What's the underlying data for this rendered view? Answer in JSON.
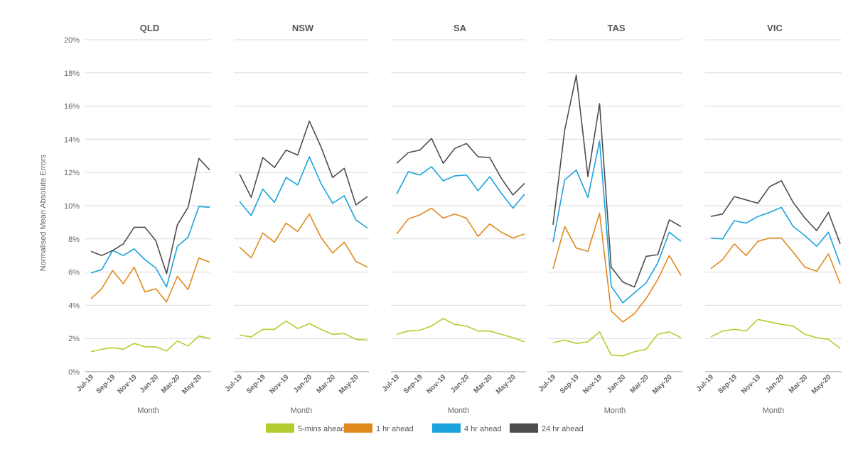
{
  "y_axis_label": "Normalised Mean Absolute Errors",
  "x_axis_label": "Month",
  "y_ticks": [
    "0%",
    "2%",
    "4%",
    "6%",
    "8%",
    "10%",
    "12%",
    "14%",
    "16%",
    "18%",
    "20%"
  ],
  "x_ticks": [
    "Jul-19",
    "Sep-19",
    "Nov-19",
    "Jan-20",
    "Mar-20",
    "May-20"
  ],
  "legend": [
    {
      "label": "5-mins ahead",
      "color": "#b5cc2e"
    },
    {
      "label": "1 hr ahead",
      "color": "#e08a1e"
    },
    {
      "label": "4 hr ahead",
      "color": "#1aa3dc"
    },
    {
      "label": "24 hr ahead",
      "color": "#4d4d4f"
    }
  ],
  "chart_data": [
    {
      "type": "line",
      "title": "QLD",
      "xlabel": "Month",
      "ylabel": "Normalised Mean Absolute Errors",
      "ylim": [
        0,
        20
      ],
      "series": [
        {
          "name": "5-mins ahead",
          "values": [
            1.2,
            1.35,
            1.45,
            1.35,
            1.7,
            1.5,
            1.5,
            1.25,
            1.85,
            1.55,
            2.15,
            2.0
          ]
        },
        {
          "name": "1 hr ahead",
          "values": [
            4.4,
            5.0,
            6.1,
            5.3,
            6.3,
            4.8,
            5.0,
            4.2,
            5.75,
            4.95,
            6.85,
            6.6
          ]
        },
        {
          "name": "4 hr ahead",
          "values": [
            5.95,
            6.15,
            7.3,
            7.0,
            7.4,
            6.75,
            6.25,
            5.1,
            7.55,
            8.1,
            9.95,
            9.9
          ]
        },
        {
          "name": "24 hr ahead",
          "values": [
            7.25,
            7.0,
            7.3,
            7.7,
            8.7,
            8.7,
            7.9,
            5.9,
            8.85,
            9.9,
            12.85,
            12.15
          ]
        }
      ]
    },
    {
      "type": "line",
      "title": "NSW",
      "xlabel": "Month",
      "ylabel": "Normalised Mean Absolute Errors",
      "ylim": [
        0,
        20
      ],
      "series": [
        {
          "name": "5-mins ahead",
          "values": [
            2.2,
            2.1,
            2.55,
            2.55,
            3.05,
            2.6,
            2.9,
            2.55,
            2.25,
            2.3,
            1.95,
            1.9
          ]
        },
        {
          "name": "1 hr ahead",
          "values": [
            7.5,
            6.85,
            8.35,
            7.8,
            8.95,
            8.45,
            9.5,
            8.1,
            7.15,
            7.8,
            6.65,
            6.3
          ]
        },
        {
          "name": "4 hr ahead",
          "values": [
            10.25,
            9.4,
            11.0,
            10.2,
            11.7,
            11.25,
            12.95,
            11.35,
            10.15,
            10.6,
            9.15,
            8.65
          ]
        },
        {
          "name": "24 hr ahead",
          "values": [
            11.9,
            10.5,
            12.9,
            12.3,
            13.35,
            13.05,
            15.1,
            13.55,
            11.7,
            12.25,
            10.05,
            10.55
          ]
        }
      ]
    },
    {
      "type": "line",
      "title": "SA",
      "xlabel": "Month",
      "ylabel": "Normalised Mean Absolute Errors",
      "ylim": [
        0,
        20
      ],
      "series": [
        {
          "name": "5-mins ahead",
          "values": [
            2.25,
            2.45,
            2.5,
            2.75,
            3.2,
            2.85,
            2.75,
            2.45,
            2.45,
            2.25,
            2.05,
            1.8
          ]
        },
        {
          "name": "1 hr ahead",
          "values": [
            8.3,
            9.2,
            9.45,
            9.85,
            9.25,
            9.5,
            9.25,
            8.15,
            8.9,
            8.4,
            8.05,
            8.3
          ]
        },
        {
          "name": "4 hr ahead",
          "values": [
            10.7,
            12.05,
            11.85,
            12.35,
            11.5,
            11.8,
            11.85,
            10.9,
            11.75,
            10.75,
            9.85,
            10.7
          ]
        },
        {
          "name": "24 hr ahead",
          "values": [
            12.55,
            13.2,
            13.35,
            14.05,
            12.55,
            13.45,
            13.75,
            12.95,
            12.9,
            11.65,
            10.65,
            11.35
          ]
        }
      ]
    },
    {
      "type": "line",
      "title": "TAS",
      "xlabel": "Month",
      "ylabel": "Normalised Mean Absolute Errors",
      "ylim": [
        0,
        20
      ],
      "series": [
        {
          "name": "5-mins ahead",
          "values": [
            1.75,
            1.9,
            1.7,
            1.8,
            2.4,
            1.0,
            0.95,
            1.2,
            1.35,
            2.25,
            2.4,
            2.05
          ]
        },
        {
          "name": "1 hr ahead",
          "values": [
            6.2,
            8.75,
            7.45,
            7.25,
            9.55,
            3.65,
            3.0,
            3.5,
            4.4,
            5.55,
            7.0,
            5.8
          ]
        },
        {
          "name": "4 hr ahead",
          "values": [
            7.8,
            11.55,
            12.15,
            10.5,
            13.9,
            5.15,
            4.15,
            4.75,
            5.35,
            6.55,
            8.4,
            7.85
          ]
        },
        {
          "name": "24 hr ahead",
          "values": [
            8.85,
            14.55,
            17.85,
            11.75,
            16.15,
            6.3,
            5.4,
            5.1,
            6.95,
            7.05,
            9.15,
            8.75
          ]
        }
      ]
    },
    {
      "type": "line",
      "title": "VIC",
      "xlabel": "Month",
      "ylabel": "Normalised Mean Absolute Errors",
      "ylim": [
        0,
        20
      ],
      "series": [
        {
          "name": "5-mins ahead",
          "values": [
            2.1,
            2.45,
            2.55,
            2.45,
            3.15,
            3.0,
            2.85,
            2.75,
            2.25,
            2.05,
            1.95,
            1.4
          ]
        },
        {
          "name": "1 hr ahead",
          "values": [
            6.2,
            6.75,
            7.7,
            7.0,
            7.85,
            8.05,
            8.05,
            7.2,
            6.3,
            6.05,
            7.1,
            5.3
          ]
        },
        {
          "name": "4 hr ahead",
          "values": [
            8.05,
            8.0,
            9.1,
            8.95,
            9.35,
            9.6,
            9.9,
            8.75,
            8.2,
            7.55,
            8.4,
            6.45
          ]
        },
        {
          "name": "24 hr ahead",
          "values": [
            9.35,
            9.5,
            10.55,
            10.35,
            10.15,
            11.15,
            11.5,
            10.2,
            9.25,
            8.5,
            9.6,
            7.7
          ]
        }
      ]
    }
  ]
}
